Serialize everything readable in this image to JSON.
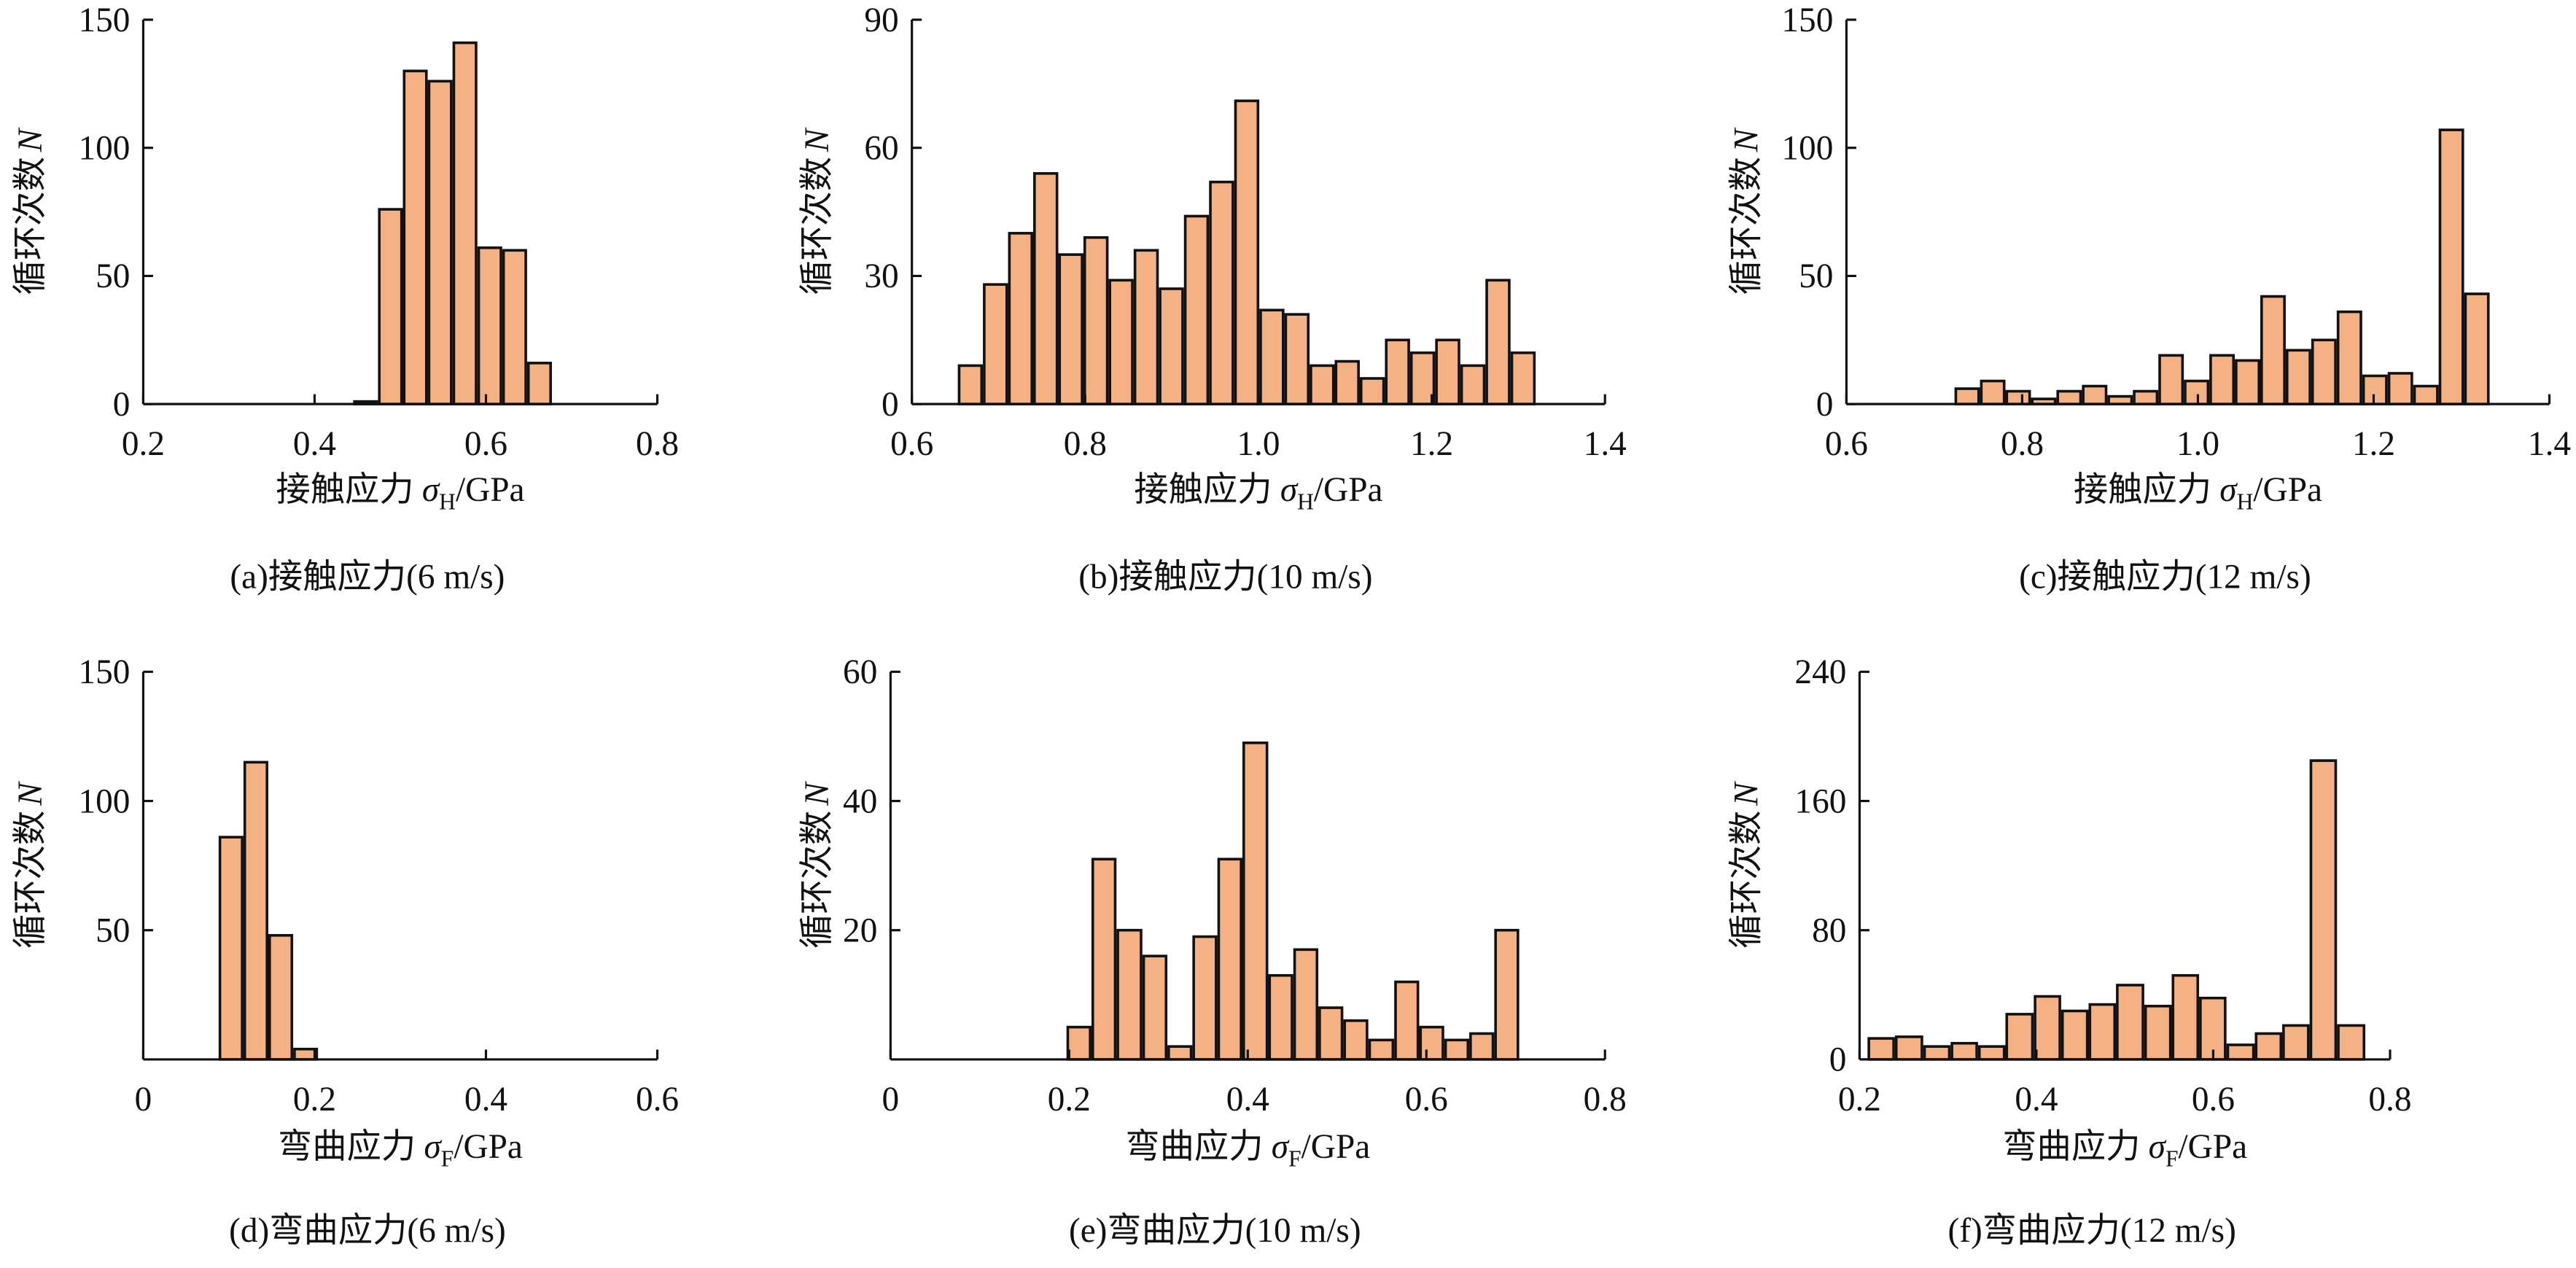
{
  "chart_data": [
    {
      "type": "histogram",
      "caption": "(a)接触应力(6 m/s)",
      "xlabel": {
        "text": "接触应力",
        "symbol": "σ",
        "subscript": "H",
        "unit": "/GPa"
      },
      "ylabel": {
        "text": "循环次数",
        "symbol": "N"
      },
      "bins": [
        0.445,
        0.474,
        0.503,
        0.532,
        0.561,
        0.59,
        0.619,
        0.648,
        0.677
      ],
      "counts": [
        1,
        76,
        130,
        126,
        141,
        61,
        60,
        16
      ],
      "color": "#f4b183",
      "xlim": [
        0.2,
        0.8
      ],
      "xticks": [
        0.2,
        0.4,
        0.6,
        0.8
      ],
      "ylim": [
        0,
        150
      ],
      "yticks": [
        0,
        50,
        100,
        150
      ]
    },
    {
      "type": "histogram",
      "caption": "(b)接触应力(10 m/s)",
      "xlabel": {
        "text": "接触应力",
        "symbol": "σ",
        "subscript": "H",
        "unit": "/GPa"
      },
      "ylabel": {
        "text": "循环次数",
        "symbol": "N"
      },
      "bins": [
        0.653,
        0.682,
        0.711,
        0.74,
        0.769,
        0.798,
        0.827,
        0.856,
        0.885,
        0.914,
        0.943,
        0.972,
        1.001,
        1.03,
        1.059,
        1.088,
        1.117,
        1.146,
        1.175,
        1.204,
        1.233,
        1.262,
        1.291,
        1.32
      ],
      "counts": [
        9,
        28,
        40,
        54,
        35,
        39,
        29,
        36,
        27,
        44,
        52,
        71,
        22,
        21,
        9,
        10,
        6,
        15,
        12,
        15,
        9,
        29,
        12
      ],
      "color": "#f4b183",
      "xlim": [
        0.6,
        1.4
      ],
      "xticks": [
        0.6,
        0.8,
        {
          "value": 1,
          "label": "1.0"
        },
        1.2,
        1.4
      ],
      "ylim": [
        0,
        90
      ],
      "yticks": [
        0,
        30,
        60,
        90
      ]
    },
    {
      "type": "histogram",
      "caption": "(c)接触应力(12 m/s)",
      "xlabel": {
        "text": "接触应力",
        "symbol": "σ",
        "subscript": "H",
        "unit": "/GPa"
      },
      "ylabel": {
        "text": "循环次数",
        "symbol": "N"
      },
      "bins": [
        0.723,
        0.752,
        0.781,
        0.81,
        0.839,
        0.868,
        0.897,
        0.926,
        0.955,
        0.984,
        1.013,
        1.042,
        1.071,
        1.1,
        1.129,
        1.158,
        1.187,
        1.216,
        1.245,
        1.274,
        1.303,
        1.332
      ],
      "counts": [
        6,
        9,
        5,
        2,
        5,
        7,
        3,
        5,
        19,
        9,
        19,
        17,
        42,
        21,
        25,
        36,
        11,
        12,
        7,
        107,
        43
      ],
      "color": "#f4b183",
      "xlim": [
        0.6,
        1.4
      ],
      "xticks": [
        0.6,
        0.8,
        {
          "value": 1,
          "label": "1.0"
        },
        1.2,
        1.4
      ],
      "ylim": [
        0,
        150
      ],
      "yticks": [
        0,
        50,
        100,
        150
      ]
    },
    {
      "type": "histogram",
      "caption": "(d)弯曲应力(6 m/s)",
      "xlabel": {
        "text": "弯曲应力",
        "symbol": "σ",
        "subscript": "F",
        "unit": "/GPa"
      },
      "ylabel": {
        "text": "循环次数",
        "symbol": "N"
      },
      "bins": [
        0.088,
        0.117,
        0.146,
        0.175,
        0.204
      ],
      "counts": [
        86,
        115,
        48,
        4
      ],
      "color": "#f4b183",
      "xlim": [
        0,
        0.6
      ],
      "xticks": [
        0,
        0.2,
        0.4,
        0.6
      ],
      "ylim": [
        0,
        150
      ],
      "yticks": [
        50,
        100,
        150
      ]
    },
    {
      "type": "histogram",
      "caption": "(e)弯曲应力(10 m/s)",
      "xlabel": {
        "text": "弯曲应力",
        "symbol": "σ",
        "subscript": "F",
        "unit": "/GPa"
      },
      "ylabel": {
        "text": "循环次数",
        "symbol": "N"
      },
      "bins": [
        0.197,
        0.225,
        0.253,
        0.282,
        0.31,
        0.338,
        0.366,
        0.394,
        0.423,
        0.451,
        0.479,
        0.507,
        0.535,
        0.564,
        0.592,
        0.62,
        0.648,
        0.676,
        0.704
      ],
      "counts": [
        5,
        31,
        20,
        16,
        2,
        19,
        31,
        49,
        13,
        17,
        8,
        6,
        3,
        12,
        5,
        3,
        4,
        20
      ],
      "color": "#f4b183",
      "xlim": [
        0,
        0.8
      ],
      "xticks": [
        0,
        0.2,
        0.4,
        0.6,
        0.8
      ],
      "ylim": [
        0,
        60
      ],
      "yticks": [
        20,
        40,
        60
      ]
    },
    {
      "type": "histogram",
      "caption": "(f)弯曲应力(12 m/s)",
      "xlabel": {
        "text": "弯曲应力",
        "symbol": "σ",
        "subscript": "F",
        "unit": "/GPa"
      },
      "ylabel": {
        "text": "循环次数",
        "symbol": "N"
      },
      "bins": [
        0.209,
        0.24,
        0.272,
        0.303,
        0.334,
        0.365,
        0.397,
        0.428,
        0.459,
        0.49,
        0.522,
        0.553,
        0.584,
        0.615,
        0.647,
        0.678,
        0.709,
        0.74,
        0.772
      ],
      "counts": [
        13,
        14,
        8,
        10,
        8,
        28,
        39,
        30,
        34,
        46,
        33,
        52,
        38,
        9,
        16,
        21,
        185,
        21
      ],
      "color": "#f4b183",
      "xlim": [
        0.2,
        0.8
      ],
      "xticks": [
        0.2,
        0.4,
        0.6,
        0.8
      ],
      "ylim": [
        0,
        240
      ],
      "yticks": [
        0,
        80,
        160,
        240
      ]
    }
  ]
}
